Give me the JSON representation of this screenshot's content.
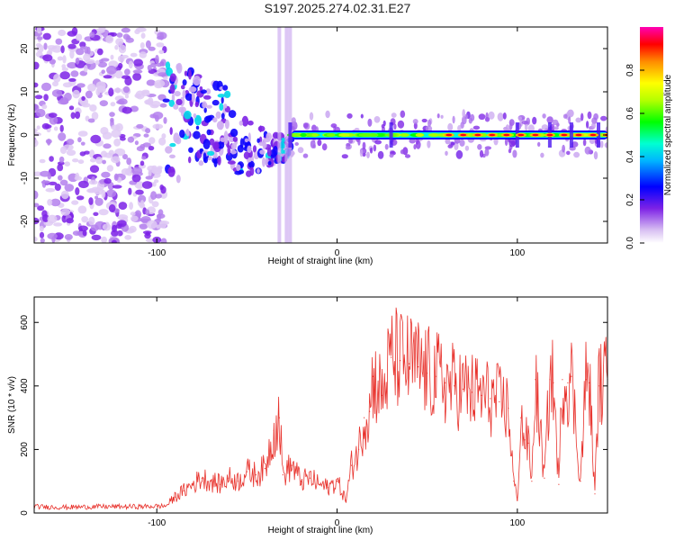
{
  "figure_title": "S197.2025.274.02.31.E27",
  "chart_data": [
    {
      "id": "spectrogram",
      "type": "heatmap",
      "xlabel": "Height of straight line (km)",
      "ylabel": "Frequency (Hz)",
      "xlim": [
        -168,
        150
      ],
      "ylim": [
        -25,
        25
      ],
      "xticks": [
        -100,
        0,
        100
      ],
      "yticks": [
        -20,
        -10,
        0,
        10,
        20
      ],
      "xtick_labels": [
        "-100",
        "0",
        "100"
      ],
      "ytick_labels": [
        "-20",
        "-10",
        "0",
        "10",
        "20"
      ],
      "colorbar": {
        "label": "Normalized spectral amplitude",
        "range": [
          0,
          1
        ],
        "ticks": [
          0.0,
          0.2,
          0.4,
          0.6,
          0.8
        ],
        "tick_labels": [
          "0.0",
          "0.2",
          "0.4",
          "0.6",
          "0.8"
        ]
      },
      "features": [
        {
          "name": "noise-region",
          "x_range": [
            -168,
            -95
          ],
          "y_range": [
            -25,
            25
          ],
          "amplitude": 0.15
        },
        {
          "name": "scattered-echoes",
          "x_range": [
            -95,
            -25
          ],
          "y_range": [
            -12,
            10
          ],
          "amplitude": 0.3
        },
        {
          "name": "main-trace",
          "x_range": [
            -25,
            150
          ],
          "y_center": 0,
          "amplitude": 0.6
        },
        {
          "name": "strong-segment",
          "x_range": [
            60,
            150
          ],
          "y_center": 0,
          "amplitude": 0.95
        }
      ]
    },
    {
      "id": "snr",
      "type": "line",
      "xlabel": "Height of straight line (km)",
      "ylabel": "SNR (10 * v/v)",
      "xlim": [
        -168,
        150
      ],
      "ylim": [
        0,
        680
      ],
      "xticks": [
        -100,
        0,
        100
      ],
      "yticks": [
        0,
        200,
        400,
        600
      ],
      "xtick_labels": [
        "-100",
        "0",
        "100"
      ],
      "ytick_labels": [
        "0",
        "200",
        "400",
        "600"
      ],
      "line_color": "#e8322c",
      "series": [
        {
          "name": "SNR",
          "x": [
            -168,
            -150,
            -130,
            -110,
            -95,
            -90,
            -85,
            -80,
            -75,
            -70,
            -65,
            -60,
            -55,
            -50,
            -45,
            -40,
            -35,
            -32,
            -30,
            -25,
            -20,
            -15,
            -10,
            -5,
            0,
            5,
            8,
            12,
            15,
            18,
            20,
            25,
            30,
            35,
            40,
            45,
            50,
            55,
            60,
            65,
            70,
            75,
            80,
            85,
            90,
            95,
            98,
            100,
            102,
            104,
            106,
            108,
            110,
            115,
            118,
            120,
            123,
            125,
            128,
            130,
            135,
            138,
            140,
            143,
            145,
            150
          ],
          "y": [
            20,
            18,
            20,
            20,
            22,
            50,
            70,
            90,
            110,
            100,
            90,
            110,
            100,
            130,
            120,
            140,
            260,
            300,
            120,
            150,
            100,
            110,
            90,
            80,
            100,
            40,
            150,
            200,
            300,
            320,
            430,
            370,
            490,
            480,
            470,
            460,
            440,
            430,
            410,
            400,
            390,
            380,
            370,
            360,
            350,
            330,
            100,
            40,
            300,
            230,
            220,
            100,
            420,
            110,
            420,
            410,
            90,
            420,
            410,
            430,
            100,
            420,
            410,
            60,
            400,
            420
          ]
        }
      ]
    }
  ]
}
